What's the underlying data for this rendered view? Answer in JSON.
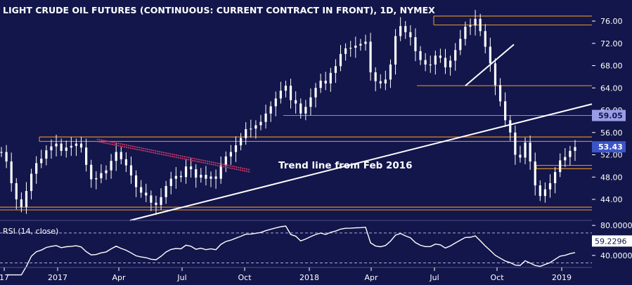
{
  "chart_data": {
    "type": "candlestick",
    "title": "LIGHT CRUDE OIL FUTURES (CONTINUOUS: CURRENT CONTRACT IN FRONT), 1D, NYMEX",
    "x_tick_labels": [
      "17",
      "2017",
      "Apr",
      "Jul",
      "Oct",
      "2018",
      "Apr",
      "Jul",
      "Oct",
      "2019"
    ],
    "price_axis": {
      "tick_labels": [
        "76.00",
        "72.00",
        "68.00",
        "64.00",
        "60.00",
        "56.00",
        "52.00",
        "48.00",
        "44.00"
      ],
      "range": [
        41.6,
        77.6
      ]
    },
    "last_price_label": "53.43",
    "level_label": "59.05",
    "horizontal_levels": [
      76.9,
      75.3,
      64.4,
      59.05,
      55.2,
      54.4,
      50.1,
      49.5,
      42.6,
      42.1
    ],
    "annotation": "Trend line from Feb 2016",
    "close_series": [
      52.5,
      50.8,
      46.9,
      44.0,
      42.6,
      45.5,
      48.6,
      50.5,
      51.3,
      52.8,
      53.5,
      54.0,
      52.7,
      53.3,
      53.6,
      54.0,
      53.3,
      50.2,
      47.6,
      47.8,
      48.7,
      49.2,
      50.9,
      52.5,
      51.2,
      50.1,
      48.3,
      46.2,
      45.2,
      44.7,
      43.4,
      43.0,
      44.4,
      46.4,
      47.7,
      48.2,
      48.0,
      49.9,
      49.4,
      47.9,
      48.4,
      47.7,
      48.1,
      47.7,
      50.1,
      51.7,
      52.5,
      53.7,
      55.0,
      56.6,
      56.7,
      57.3,
      57.9,
      59.4,
      60.7,
      62.1,
      63.5,
      64.4,
      61.8,
      61.2,
      59.4,
      60.6,
      62.3,
      64.0,
      65.3,
      64.8,
      66.7,
      67.9,
      70.1,
      71.1,
      71.2,
      71.6,
      71.9,
      72.3,
      66.8,
      65.2,
      64.8,
      65.5,
      68.2,
      73.3,
      75.1,
      74.0,
      73.1,
      70.6,
      69.0,
      68.2,
      68.2,
      69.8,
      69.4,
      67.7,
      68.9,
      70.8,
      72.8,
      75.0,
      75.2,
      76.4,
      74.2,
      71.4,
      68.4,
      64.5,
      61.6,
      58.2,
      56.0,
      52.0,
      51.5,
      54.2,
      50.8,
      46.5,
      44.6,
      45.8,
      46.9,
      48.9,
      51.0,
      51.6,
      52.7,
      53.4
    ],
    "rsi": {
      "label": "RSI (14, close)",
      "tick_labels": [
        "80.0000",
        "40.0000"
      ],
      "last_value_label": "59.2296",
      "range": [
        12,
        100
      ],
      "overbought": 70,
      "oversold": 30
    }
  },
  "colors": {
    "background": "#13164a",
    "candle": "#ffffff",
    "zone": "#d8892c",
    "trend": "#ffffff",
    "resistance_trend": "#e23a6a",
    "level_line": "#8c8fd8",
    "level_label_bg": "#9a9de6",
    "price_label_bg": "#3b55c8",
    "rsi_label_bg": "#ffffff",
    "text": "#ffffff",
    "dashed": "#a9aad6"
  }
}
